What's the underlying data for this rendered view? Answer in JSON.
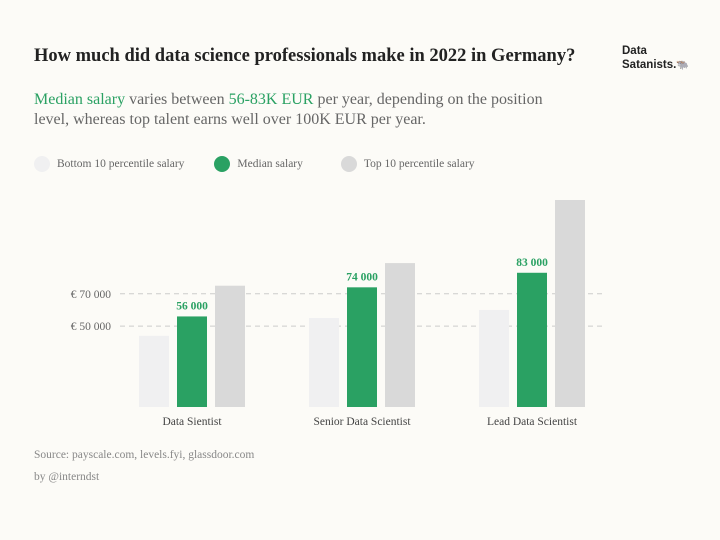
{
  "header": {
    "title": "How much did data science professionals make in 2022 in Germany?",
    "brand_line1": "Data",
    "brand_line2": "Satanists.",
    "brand_emoji": "🐃"
  },
  "subtitle": {
    "part1": "Median salary",
    "part2": " varies between ",
    "part3": "56-83K EUR",
    "part4": " per year, depending on the position level, whereas top talent earns well over 100K EUR per year."
  },
  "legend": {
    "bottom": "Bottom 10 percentile salary",
    "median": "Median salary",
    "top": "Top 10 percentile salary"
  },
  "colors": {
    "bottom": "#f0f0f1",
    "median": "#2aa163",
    "top": "#d9d9d9",
    "gridline": "#cccccc"
  },
  "chart_data": {
    "type": "bar",
    "categories": [
      "Data Sientist",
      "Senior Data Scientist",
      "Lead Data Scientist"
    ],
    "series": [
      {
        "name": "Bottom 10 percentile salary",
        "values": [
          44000,
          55000,
          60000
        ]
      },
      {
        "name": "Median salary",
        "values": [
          56000,
          74000,
          83000
        ]
      },
      {
        "name": "Top 10 percentile salary",
        "values": [
          75000,
          89000,
          128000
        ]
      }
    ],
    "data_labels": [
      "56 000",
      "74 000",
      "83 000"
    ],
    "y_ticks": [
      {
        "value": 50000,
        "label": "€ 50 000"
      },
      {
        "value": 70000,
        "label": "€ 70 000"
      }
    ],
    "ylim": [
      0,
      128000
    ],
    "grid": "dashed at ticks",
    "legend_position": "top-left"
  },
  "footer": {
    "source": "Source: payscale.com, levels.fyi, glassdoor.com",
    "author": "by @interndst"
  }
}
